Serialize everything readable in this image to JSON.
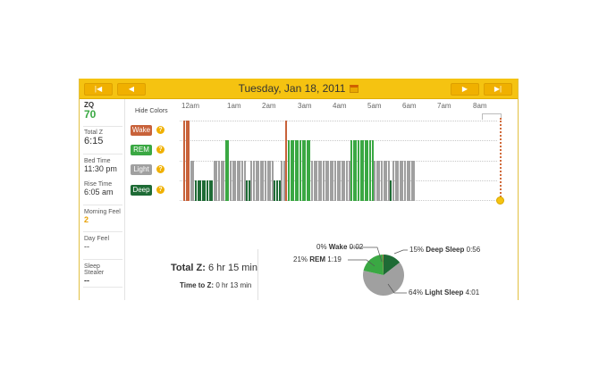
{
  "header": {
    "date": "Tuesday, Jan 18, 2011",
    "nav_first": "|◀",
    "nav_prev": "◀",
    "nav_next": "▶",
    "nav_last": "▶|"
  },
  "stats": {
    "zq_label": "ZQ",
    "zq_value": "70",
    "total_z_label": "Total Z",
    "total_z_value": "6:15",
    "bed_time_label": "Bed Time",
    "bed_time_value": "11:30 pm",
    "rise_time_label": "Rise Time",
    "rise_time_value": "6:05 am",
    "morning_feel_label": "Morning Feel",
    "morning_feel_value": "2",
    "day_feel_label": "Day Feel",
    "day_feel_value": "--",
    "sleep_stealer_label": "Sleep Stealer",
    "sleep_stealer_value": "--"
  },
  "graph": {
    "hide_colors": "Hide Colors",
    "hours": [
      "12am",
      "1am",
      "2am",
      "3am",
      "4am",
      "5am",
      "6am",
      "7am",
      "8am"
    ],
    "stages": [
      "Wake",
      "REM",
      "Light",
      "Deep"
    ],
    "help_glyph": "?",
    "stage_colors": {
      "Wake": "#c8623a",
      "REM": "#3aa843",
      "Light": "#a0a0a0",
      "Deep": "#1e6b35"
    },
    "hypnogram": "WWWLLDDDDDDDDLLLLLRRLLLLLLLDDLLLLLLLLLLDDDLLWRRRRRRRRRRLLLLLLLLLLLLLLLLLRRRRRRRRRRLLLLLLLDLLLLLLLLLL"
  },
  "summary": {
    "total_z_label": "Total Z:",
    "total_z_value": "6 hr 15 min",
    "time_to_z_label": "Time to Z:",
    "time_to_z_value": "0 hr 13 min"
  },
  "pie": {
    "wake_pct": "0%",
    "wake_name": "Wake",
    "wake_time": "0:02",
    "rem_pct": "21%",
    "rem_name": "REM",
    "rem_time": "1:19",
    "deep_pct": "15%",
    "deep_name": "Deep Sleep",
    "deep_time": "0:56",
    "light_pct": "64%",
    "light_name": "Light Sleep",
    "light_time": "4:01",
    "fractions": {
      "wake": 0.005,
      "rem": 0.21,
      "light": 0.64,
      "deep": 0.145
    },
    "colors": {
      "deep": "#1e6b35",
      "rem": "#3aa843",
      "light": "#a0a0a0",
      "wake": "#c8623a"
    }
  }
}
